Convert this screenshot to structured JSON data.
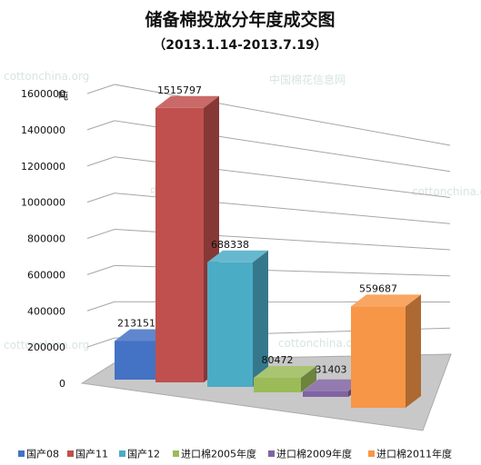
{
  "chart_data": {
    "type": "bar",
    "title": "储备棉投放分年度成交图",
    "subtitle": "（2013.1.14-2013.7.19）",
    "unit": "吨",
    "categories": [
      "国产08",
      "国产11",
      "国产12",
      "进口棉2005年度",
      "进口棉2009年度",
      "进口棉2011年度"
    ],
    "values": [
      213151,
      1515797,
      688338,
      80472,
      31403,
      559687
    ],
    "value_labels": [
      "213151",
      "1515797",
      "688338",
      "80472",
      "31403",
      "559687"
    ],
    "y_ticks": [
      "0",
      "200000",
      "400000",
      "600000",
      "800000",
      "1000000",
      "1200000",
      "1400000",
      "1600000"
    ],
    "ylim": [
      0,
      1600000
    ],
    "grid": true,
    "legend_position": "bottom",
    "colors": [
      "#4472c4",
      "#c0504d",
      "#4bacc6",
      "#9bbb59",
      "#8064a2",
      "#f79646"
    ],
    "watermarks": [
      "cottonchina.org",
      "cottonchina.org",
      "中国棉花信息网",
      "中国棉花",
      "cottonchina.org",
      "cottonchina.org"
    ]
  }
}
